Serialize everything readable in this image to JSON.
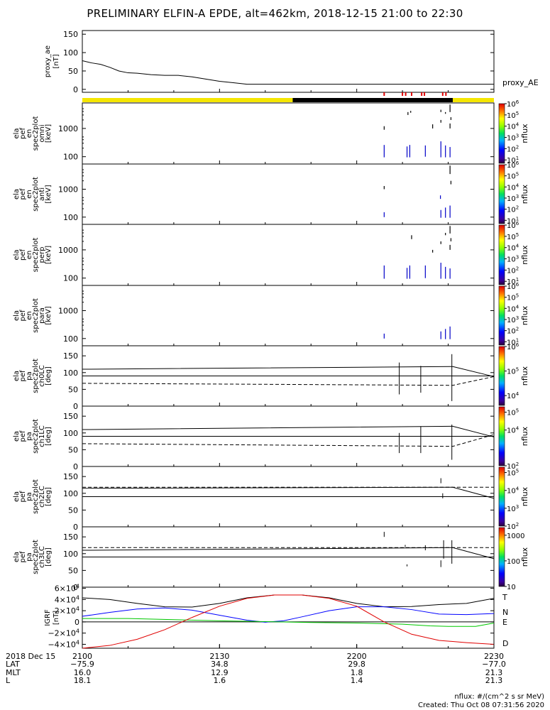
{
  "title": "PRELIMINARY ELFIN-A EPDE, alt=462km, 2018-12-15 21:00 to 22:30",
  "footer": {
    "units": "nflux: #/(cm^2 s sr MeV)",
    "created": "Created: Thu Oct 08 07:31:56 2020"
  },
  "colors": {
    "axis": "#000000",
    "trace": "#0000c8",
    "flag_yellow": "#f5e600",
    "flag_black": "#000000",
    "flag_red": "#e00000",
    "igrf_T": "#000000",
    "igrf_N": "#0000ff",
    "igrf_E": "#00c800",
    "igrf_D": "#e00000"
  },
  "xaxis": {
    "ticks": [
      {
        "label": "2100",
        "lat": "-75.9",
        "mlt": "16.0",
        "l": "18.1"
      },
      {
        "label": "2130",
        "lat": "34.8",
        "mlt": "12.9",
        "l": "1.6"
      },
      {
        "label": "2200",
        "lat": "29.8",
        "mlt": "1.8",
        "l": "1.4"
      },
      {
        "label": "2230",
        "lat": "-77.0",
        "mlt": "21.3",
        "l": "21.3"
      }
    ],
    "row_labels": {
      "date": "2018 Dec 15",
      "lat": "LAT",
      "mlt": "MLT",
      "l": "L"
    }
  },
  "chart_data": [
    {
      "type": "line",
      "id": "proxy_ae",
      "ylabel": [
        "proxy_ae",
        "[nT]"
      ],
      "right_label": "proxy_AE",
      "yticks": [
        "0",
        "50",
        "100",
        "150"
      ],
      "ylim": [
        -8,
        160
      ],
      "x_minutes": [
        0,
        2,
        4,
        6,
        8,
        10,
        12,
        15,
        18,
        21,
        24,
        27,
        30,
        33,
        36,
        90
      ],
      "y": [
        78,
        72,
        68,
        60,
        50,
        45,
        44,
        40,
        38,
        38,
        34,
        28,
        22,
        18,
        14,
        14
      ]
    },
    {
      "type": "flagbar",
      "id": "flag",
      "segments": [
        {
          "start_min": 0,
          "end_min": 46,
          "state": "yellow"
        },
        {
          "start_min": 46,
          "end_min": 81,
          "state": "black"
        },
        {
          "start_min": 81,
          "end_min": 90,
          "state": "yellow"
        }
      ],
      "red_marks_min": [
        66,
        70,
        70.7,
        72,
        74.2,
        74.8,
        78.8,
        79.5
      ]
    },
    {
      "type": "spectrogram",
      "id": "omni",
      "ylabel": [
        "ela",
        "pef",
        "en",
        "spec2plot",
        "omni",
        "[keV]"
      ],
      "yticks": [
        "100",
        "1000"
      ],
      "ylim": [
        55,
        8000
      ],
      "colorbar": {
        "label": "nflux",
        "ticks": [
          "10",
          "10",
          "10",
          "10",
          "10",
          "10"
        ],
        "exps": [
          "1",
          "2",
          "3",
          "4",
          "5",
          "6"
        ],
        "min_exp": 0.7,
        "max_exp": 6
      }
    },
    {
      "type": "spectrogram",
      "id": "anti",
      "ylabel": [
        "ela",
        "pef",
        "en",
        "spec2plot",
        "anti",
        "[keV]"
      ],
      "yticks": [
        "100",
        "1000"
      ],
      "ylim": [
        55,
        8000
      ],
      "colorbar": {
        "label": "nflux",
        "ticks": [
          "10",
          "10",
          "10",
          "10",
          "10",
          "10"
        ],
        "exps": [
          "1",
          "2",
          "3",
          "4",
          "5",
          "6"
        ],
        "min_exp": 0.7,
        "max_exp": 6
      }
    },
    {
      "type": "spectrogram",
      "id": "perp",
      "ylabel": [
        "ela",
        "pef",
        "en",
        "spec2plot",
        "perp",
        "[keV]"
      ],
      "yticks": [
        "100",
        "1000"
      ],
      "ylim": [
        55,
        8000
      ],
      "colorbar": {
        "label": "nflux",
        "ticks": [
          "10",
          "10",
          "10",
          "10",
          "10",
          "10"
        ],
        "exps": [
          "1",
          "2",
          "3",
          "4",
          "5",
          "6"
        ],
        "min_exp": 0.7,
        "max_exp": 6
      }
    },
    {
      "type": "spectrogram",
      "id": "para",
      "ylabel": [
        "ela",
        "pef",
        "en",
        "spec2plot",
        "para",
        "[keV]"
      ],
      "yticks": [
        "100",
        "1000"
      ],
      "ylim": [
        55,
        8000
      ],
      "colorbar": {
        "label": "nflux",
        "ticks": [
          "10",
          "10",
          "10",
          "10",
          "10",
          "10"
        ],
        "exps": [
          "1",
          "2",
          "3",
          "4",
          "5",
          "6"
        ],
        "min_exp": 0.7,
        "max_exp": 6
      }
    },
    {
      "type": "pitch_angle",
      "id": "ch0LC",
      "ylabel": [
        "ela",
        "pef",
        "pa",
        "spec2plot",
        "ch0LC",
        "[deg]"
      ],
      "yticks": [
        "0",
        "50",
        "100",
        "150"
      ],
      "ylim": [
        0,
        180
      ],
      "colorbar": {
        "label": "nflux",
        "ticks": [
          "10",
          "10",
          "10"
        ],
        "exps": [
          "4",
          "5",
          "6"
        ],
        "min_exp": 3.6,
        "max_exp": 6
      }
    },
    {
      "type": "pitch_angle",
      "id": "ch1LC",
      "ylabel": [
        "ela",
        "pef",
        "pa",
        "spec2plot",
        "ch1LC",
        "[deg]"
      ],
      "yticks": [
        "0",
        "50",
        "100",
        "150"
      ],
      "ylim": [
        0,
        180
      ],
      "colorbar": {
        "label": "nflux",
        "ticks": [
          "10",
          "10",
          "10"
        ],
        "exps": [
          "2",
          "4",
          "5"
        ],
        "min_exp": 2,
        "max_exp": 5.3
      }
    },
    {
      "type": "pitch_angle",
      "id": "ch2LC",
      "ylabel": [
        "ela",
        "pef",
        "pa",
        "spec2plot",
        "ch2LC",
        "[deg]"
      ],
      "yticks": [
        "0",
        "50",
        "100",
        "150"
      ],
      "ylim": [
        0,
        180
      ],
      "colorbar": {
        "label": "nflux",
        "ticks": [
          "10",
          "10",
          "10",
          "10"
        ],
        "exps": [
          "2",
          "3",
          "4",
          "5"
        ],
        "min_exp": 2,
        "max_exp": 5.3
      }
    },
    {
      "type": "pitch_angle",
      "id": "ch3LC",
      "ylabel": [
        "ela",
        "pef",
        "pa",
        "spec2plot",
        "ch3LC",
        "[deg]"
      ],
      "yticks": [
        "0",
        "50",
        "100",
        "150"
      ],
      "ylim": [
        0,
        180
      ],
      "colorbar": {
        "label": "nflux",
        "ticks": [
          "10",
          "100",
          "1000"
        ],
        "exps": [
          "",
          "",
          ""
        ],
        "min_exp": 1,
        "max_exp": 3.3
      }
    },
    {
      "type": "line",
      "id": "igrf",
      "ylabel": [
        "IGRF",
        "[nT]"
      ],
      "yticks": [
        "-4×10",
        "-2×10",
        "0",
        "2×10",
        "4×10",
        "6×10"
      ],
      "ytick_exps": [
        "4",
        "4",
        "",
        "4",
        "4",
        "4"
      ],
      "ylim": [
        -47000,
        62000
      ],
      "series": [
        {
          "name": "T",
          "color": "#000000",
          "x_minutes": [
            0,
            6,
            12,
            18,
            24,
            30,
            36,
            42,
            48,
            54,
            60,
            66,
            72,
            78,
            84,
            90
          ],
          "y": [
            43000,
            40000,
            33000,
            27000,
            26500,
            33000,
            43000,
            48000,
            48000,
            43000,
            33000,
            27000,
            27500,
            31000,
            33000,
            42000
          ]
        },
        {
          "name": "N",
          "color": "#0000ff",
          "x_minutes": [
            0,
            6,
            12,
            18,
            24,
            30,
            36,
            40,
            44,
            48,
            54,
            60,
            66,
            72,
            78,
            84,
            90
          ],
          "y": [
            10000,
            17000,
            23000,
            25000,
            21000,
            12000,
            3000,
            -500,
            2000,
            9000,
            20000,
            27000,
            27000,
            22000,
            14000,
            13000,
            15000
          ]
        },
        {
          "name": "E",
          "color": "#00c800",
          "x_minutes": [
            0,
            10,
            20,
            30,
            40,
            50,
            60,
            70,
            76,
            80,
            86,
            90
          ],
          "y": [
            6000,
            6000,
            4000,
            2000,
            500,
            -1000,
            -2000,
            -4000,
            -7000,
            -8000,
            -8000,
            -2000
          ]
        },
        {
          "name": "D",
          "color": "#e00000",
          "x_minutes": [
            0,
            6,
            12,
            18,
            24,
            30,
            36,
            42,
            48,
            54,
            60,
            66,
            72,
            78,
            84,
            90
          ],
          "y": [
            -47000,
            -42000,
            -31000,
            -14000,
            8000,
            28000,
            42000,
            48000,
            48000,
            42000,
            28000,
            0,
            -22000,
            -33000,
            -37000,
            -40000
          ]
        }
      ]
    }
  ]
}
